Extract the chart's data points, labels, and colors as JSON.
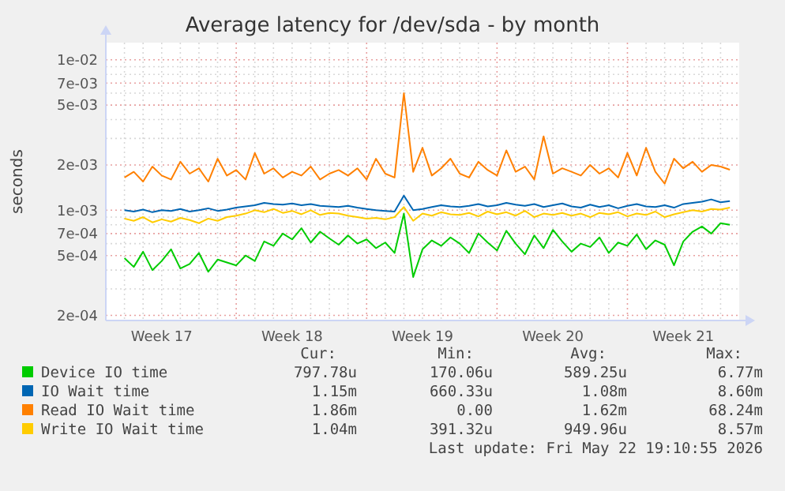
{
  "chart_data": {
    "type": "line",
    "title": "Average latency for /dev/sda - by month",
    "ylabel": "seconds",
    "log": "y",
    "grid": true,
    "legend": "bottom",
    "marker": "none",
    "line_style": "solid",
    "ylim": [
      0.000185,
      0.013
    ],
    "yticks": [
      {
        "value": 0.0002,
        "label": "2e-04"
      },
      {
        "value": 0.0003,
        "label": null
      },
      {
        "value": 0.0004,
        "label": null
      },
      {
        "value": 0.0005,
        "label": "5e-04"
      },
      {
        "value": 0.0006,
        "label": null
      },
      {
        "value": 0.0007,
        "label": "7e-04"
      },
      {
        "value": 0.0008,
        "label": null
      },
      {
        "value": 0.0009,
        "label": null
      },
      {
        "value": 0.001,
        "label": "1e-03"
      },
      {
        "value": 0.002,
        "label": "2e-03"
      },
      {
        "value": 0.003,
        "label": null
      },
      {
        "value": 0.004,
        "label": null
      },
      {
        "value": 0.005,
        "label": "5e-03"
      },
      {
        "value": 0.006,
        "label": null
      },
      {
        "value": 0.007,
        "label": "7e-03"
      },
      {
        "value": 0.008,
        "label": null
      },
      {
        "value": 0.009,
        "label": null
      },
      {
        "value": 0.01,
        "label": "1e-02"
      }
    ],
    "xlim": [
      "2026-04-20",
      "2026-05-24"
    ],
    "xticks": [
      {
        "value": "2026-04-23",
        "label": "Week 17"
      },
      {
        "value": "2026-04-30",
        "label": "Week 18"
      },
      {
        "value": "2026-05-07",
        "label": "Week 19"
      },
      {
        "value": "2026-05-14",
        "label": "Week 20"
      },
      {
        "value": "2026-05-21",
        "label": "Week 21"
      },
      {
        "value": "2026-04-21",
        "label": null
      },
      {
        "value": "2026-04-22",
        "label": null
      },
      {
        "value": "2026-04-23",
        "label": null
      },
      {
        "value": "2026-04-24",
        "label": null
      },
      {
        "value": "2026-04-25",
        "label": null
      },
      {
        "value": "2026-04-26",
        "label": null
      },
      {
        "value": "2026-04-27",
        "label": null
      },
      {
        "value": "2026-04-28",
        "label": null
      },
      {
        "value": "2026-04-29",
        "label": null
      },
      {
        "value": "2026-04-30",
        "label": null
      },
      {
        "value": "2026-05-01",
        "label": null
      },
      {
        "value": "2026-05-02",
        "label": null
      },
      {
        "value": "2026-05-03",
        "label": null
      },
      {
        "value": "2026-05-04",
        "label": null
      },
      {
        "value": "2026-05-05",
        "label": null
      },
      {
        "value": "2026-05-06",
        "label": null
      },
      {
        "value": "2026-05-07",
        "label": null
      },
      {
        "value": "2026-05-08",
        "label": null
      },
      {
        "value": "2026-05-09",
        "label": null
      },
      {
        "value": "2026-05-10",
        "label": null
      },
      {
        "value": "2026-05-11",
        "label": null
      },
      {
        "value": "2026-05-12",
        "label": null
      },
      {
        "value": "2026-05-13",
        "label": null
      },
      {
        "value": "2026-05-14",
        "label": null
      },
      {
        "value": "2026-05-15",
        "label": null
      },
      {
        "value": "2026-05-16",
        "label": null
      },
      {
        "value": "2026-05-17",
        "label": null
      },
      {
        "value": "2026-05-18",
        "label": null
      },
      {
        "value": "2026-05-19",
        "label": null
      },
      {
        "value": "2026-05-20",
        "label": null
      },
      {
        "value": "2026-05-21",
        "label": null
      },
      {
        "value": "2026-05-22",
        "label": null
      },
      {
        "value": "2026-05-23",
        "label": null
      }
    ],
    "x": [
      "2026-04-21T00:00",
      "2026-04-21T12:00",
      "2026-04-22T00:00",
      "2026-04-22T12:00",
      "2026-04-23T00:00",
      "2026-04-23T12:00",
      "2026-04-24T00:00",
      "2026-04-24T12:00",
      "2026-04-25T00:00",
      "2026-04-25T12:00",
      "2026-04-26T00:00",
      "2026-04-26T12:00",
      "2026-04-27T00:00",
      "2026-04-27T12:00",
      "2026-04-28T00:00",
      "2026-04-28T12:00",
      "2026-04-29T00:00",
      "2026-04-29T12:00",
      "2026-04-30T00:00",
      "2026-04-30T12:00",
      "2026-05-01T00:00",
      "2026-05-01T12:00",
      "2026-05-02T00:00",
      "2026-05-02T12:00",
      "2026-05-03T00:00",
      "2026-05-03T12:00",
      "2026-05-04T00:00",
      "2026-05-04T12:00",
      "2026-05-05T00:00",
      "2026-05-05T12:00",
      "2026-05-06T00:00",
      "2026-05-06T12:00",
      "2026-05-07T00:00",
      "2026-05-07T12:00",
      "2026-05-08T00:00",
      "2026-05-08T12:00",
      "2026-05-09T00:00",
      "2026-05-09T12:00",
      "2026-05-10T00:00",
      "2026-05-10T12:00",
      "2026-05-11T00:00",
      "2026-05-11T12:00",
      "2026-05-12T00:00",
      "2026-05-12T12:00",
      "2026-05-13T00:00",
      "2026-05-13T12:00",
      "2026-05-14T00:00",
      "2026-05-14T12:00",
      "2026-05-15T00:00",
      "2026-05-15T12:00",
      "2026-05-16T00:00",
      "2026-05-16T12:00",
      "2026-05-17T00:00",
      "2026-05-17T12:00",
      "2026-05-18T00:00",
      "2026-05-18T12:00",
      "2026-05-19T00:00",
      "2026-05-19T12:00",
      "2026-05-20T00:00",
      "2026-05-20T12:00",
      "2026-05-21T00:00",
      "2026-05-21T12:00",
      "2026-05-22T00:00",
      "2026-05-22T12:00",
      "2026-05-23T00:00",
      "2026-05-23T12:00"
    ],
    "series": [
      {
        "name": "Device IO time",
        "color": "#00cc00",
        "values": [
          0.00048,
          0.00042,
          0.00053,
          0.0004,
          0.00046,
          0.00055,
          0.00041,
          0.00044,
          0.00052,
          0.00039,
          0.00047,
          0.00045,
          0.00043,
          0.0005,
          0.00046,
          0.00062,
          0.00058,
          0.0007,
          0.00064,
          0.00076,
          0.00061,
          0.00072,
          0.00065,
          0.00059,
          0.00068,
          0.0006,
          0.00064,
          0.00056,
          0.00061,
          0.00052,
          0.00095,
          0.00036,
          0.00055,
          0.00063,
          0.00058,
          0.00066,
          0.0006,
          0.00052,
          0.0007,
          0.00061,
          0.00054,
          0.00073,
          0.0006,
          0.00051,
          0.00068,
          0.00056,
          0.00074,
          0.00062,
          0.00053,
          0.0006,
          0.00057,
          0.00066,
          0.00052,
          0.00061,
          0.00058,
          0.00069,
          0.00055,
          0.00063,
          0.00059,
          0.00043,
          0.00062,
          0.00072,
          0.00078,
          0.0007,
          0.00082,
          0.0008
        ]
      },
      {
        "name": "IO Wait time",
        "color": "#0066b3",
        "values": [
          0.001,
          0.00098,
          0.00101,
          0.00097,
          0.001,
          0.00099,
          0.00102,
          0.00098,
          0.001,
          0.00103,
          0.00099,
          0.00101,
          0.00104,
          0.00106,
          0.00108,
          0.00112,
          0.0011,
          0.00109,
          0.00111,
          0.00108,
          0.0011,
          0.00107,
          0.00106,
          0.00105,
          0.00107,
          0.00104,
          0.00102,
          0.001,
          0.00099,
          0.00098,
          0.00125,
          0.001,
          0.00102,
          0.00105,
          0.00108,
          0.00106,
          0.00105,
          0.00107,
          0.0011,
          0.00106,
          0.00108,
          0.00112,
          0.00109,
          0.00107,
          0.0011,
          0.00105,
          0.00108,
          0.00111,
          0.00106,
          0.00104,
          0.00109,
          0.00105,
          0.00108,
          0.00103,
          0.00107,
          0.0011,
          0.00106,
          0.00105,
          0.00108,
          0.00104,
          0.0011,
          0.00112,
          0.00114,
          0.00118,
          0.00113,
          0.00115
        ]
      },
      {
        "name": "Read IO Wait time",
        "color": "#ff8000",
        "values": [
          0.00165,
          0.0018,
          0.00155,
          0.00195,
          0.0017,
          0.0016,
          0.0021,
          0.00175,
          0.0019,
          0.00155,
          0.0022,
          0.0017,
          0.00185,
          0.0016,
          0.0024,
          0.00175,
          0.0019,
          0.00165,
          0.0018,
          0.0017,
          0.00195,
          0.0016,
          0.00175,
          0.00185,
          0.0017,
          0.0019,
          0.0016,
          0.0022,
          0.00175,
          0.00165,
          0.006,
          0.0018,
          0.0026,
          0.0017,
          0.0019,
          0.0022,
          0.00175,
          0.00165,
          0.0021,
          0.00185,
          0.0017,
          0.0025,
          0.0018,
          0.00195,
          0.0016,
          0.0031,
          0.00175,
          0.0019,
          0.0018,
          0.0017,
          0.002,
          0.00175,
          0.0019,
          0.00165,
          0.0024,
          0.0017,
          0.0026,
          0.0018,
          0.0015,
          0.0022,
          0.0019,
          0.0021,
          0.0018,
          0.002,
          0.00195,
          0.00186
        ]
      },
      {
        "name": "Write IO Wait time",
        "color": "#ffcc00",
        "values": [
          0.00088,
          0.00085,
          0.0009,
          0.00083,
          0.00087,
          0.00084,
          0.00089,
          0.00086,
          0.00082,
          0.00088,
          0.00085,
          0.0009,
          0.00092,
          0.00095,
          0.001,
          0.00097,
          0.00102,
          0.00096,
          0.00099,
          0.00094,
          0.001,
          0.00093,
          0.00096,
          0.00095,
          0.00092,
          0.0009,
          0.00088,
          0.00089,
          0.00087,
          0.0009,
          0.00105,
          0.00085,
          0.00095,
          0.00092,
          0.00097,
          0.00094,
          0.00093,
          0.00096,
          0.00091,
          0.00098,
          0.00094,
          0.00097,
          0.00092,
          0.00099,
          0.0009,
          0.00095,
          0.00093,
          0.00096,
          0.00092,
          0.00095,
          0.0009,
          0.00096,
          0.00094,
          0.00097,
          0.00091,
          0.00095,
          0.00093,
          0.00098,
          0.0009,
          0.00094,
          0.00097,
          0.001,
          0.00098,
          0.00102,
          0.00101,
          0.00104
        ]
      }
    ],
    "annotations": [
      "Cur:",
      "Min:",
      "Avg:",
      "Max:",
      "797.78u",
      "170.06u",
      "589.25u",
      "6.77m",
      "1.15m",
      "660.33u",
      "1.08m",
      "8.60m",
      "1.86m",
      "0.00",
      "1.62m",
      "68.24m",
      "1.04m",
      "391.32u",
      "949.96u",
      "8.57m",
      "Last update: Fri May 22 19:10:55 2026"
    ]
  }
}
